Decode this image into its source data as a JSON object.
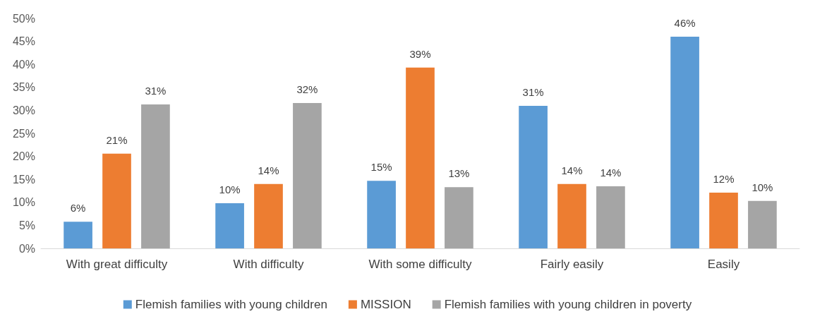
{
  "chart_data": {
    "type": "bar",
    "categories": [
      "With great difficulty",
      "With difficulty",
      "With some difficulty",
      "Fairly easily",
      "Easily"
    ],
    "series": [
      {
        "name": "Flemish families with young children",
        "color": "#5b9bd5",
        "values": [
          5.8,
          9.8,
          14.7,
          31.0,
          46.0
        ],
        "value_labels": [
          "6%",
          "10%",
          "15%",
          "31%",
          "46%"
        ]
      },
      {
        "name": "MISSION",
        "color": "#ed7d31",
        "values": [
          20.6,
          14.0,
          39.3,
          14.0,
          12.1
        ],
        "value_labels": [
          "21%",
          "14%",
          "39%",
          "14%",
          "12%"
        ]
      },
      {
        "name": "Flemish families with young children in poverty",
        "color": "#a5a5a5",
        "values": [
          31.3,
          31.6,
          13.3,
          13.5,
          10.3
        ],
        "value_labels": [
          "31%",
          "32%",
          "13%",
          "14%",
          "10%"
        ]
      }
    ],
    "ylim": [
      0,
      50
    ],
    "yticks": [
      {
        "value": 0,
        "label": "0%"
      },
      {
        "value": 5,
        "label": "5%"
      },
      {
        "value": 10,
        "label": "10%"
      },
      {
        "value": 15,
        "label": "15%"
      },
      {
        "value": 20,
        "label": "20%"
      },
      {
        "value": 25,
        "label": "25%"
      },
      {
        "value": 30,
        "label": "30%"
      },
      {
        "value": 35,
        "label": "35%"
      },
      {
        "value": 40,
        "label": "40%"
      },
      {
        "value": 45,
        "label": "45%"
      },
      {
        "value": 50,
        "label": "50%"
      }
    ],
    "grid": false,
    "legend": "bottom"
  }
}
